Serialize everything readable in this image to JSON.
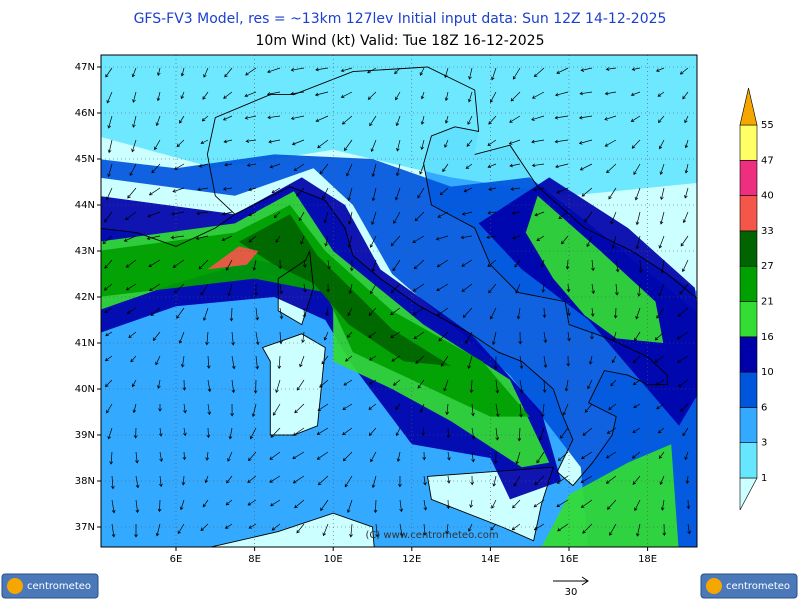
{
  "header": {
    "title": "GFS-FV3 Model, res = ~13km 127lev    Initial input data: Sun 12Z 14-12-2025",
    "subtitle": "10m Wind (kt)   Valid: Tue 18Z 16-12-2025"
  },
  "map": {
    "lat_labels": [
      "47N",
      "46N",
      "45N",
      "44N",
      "43N",
      "42N",
      "41N",
      "40N",
      "39N",
      "38N",
      "37N"
    ],
    "lon_labels": [
      "6E",
      "8E",
      "10E",
      "12E",
      "14E",
      "16E",
      "18E"
    ],
    "credit": "(C) www.centrometeo.com"
  },
  "legend": {
    "levels": [
      1,
      3,
      6,
      10,
      16,
      21,
      27,
      33,
      40,
      47,
      55
    ],
    "colors": [
      "#ccffff",
      "#66e6ff",
      "#33aaff",
      "#0055dd",
      "#0000aa",
      "#33dd33",
      "#00a000",
      "#006400",
      "#f5564a",
      "#ee2f7f",
      "#ffff66",
      "#f5a700"
    ]
  },
  "reference_vector": {
    "label": 30
  },
  "logos": [
    "centrometeo",
    "centrometeo"
  ]
}
